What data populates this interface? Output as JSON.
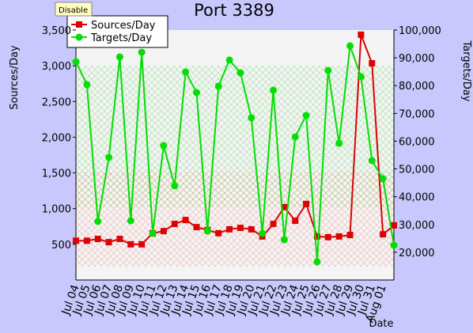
{
  "chart_data": {
    "type": "line",
    "title": "Port 3389",
    "tooltip": "Disable",
    "x_label": "Date",
    "y_label": "Sources/Day",
    "y2_label": "Targets/Day",
    "categories": [
      "Jul 04",
      "Jul 05",
      "Jul 06",
      "Jul 07",
      "Jul 08",
      "Jul 09",
      "Jul 10",
      "Jul 11",
      "Jul 12",
      "Jul 13",
      "Jul 14",
      "Jul 15",
      "Jul 16",
      "Jul 17",
      "Jul 18",
      "Jul 19",
      "Jul 20",
      "Jul 21",
      "Jul 22",
      "Jul 23",
      "Jul 24",
      "Jul 25",
      "Jul 26",
      "Jul 27",
      "Jul 28",
      "Jul 29",
      "Jul 30",
      "Jul 31",
      "Aug 01",
      null
    ],
    "series": [
      {
        "name": "Sources/Day",
        "color": "#dd0000",
        "marker": "square",
        "axis": "y",
        "values": [
          550,
          550,
          575,
          530,
          575,
          500,
          500,
          655,
          685,
          785,
          840,
          740,
          700,
          655,
          710,
          730,
          710,
          610,
          785,
          1020,
          830,
          1065,
          610,
          600,
          610,
          630,
          3435,
          3035,
          640,
          765
        ]
      },
      {
        "name": "Targets/Day",
        "color": "#00dd00",
        "marker": "circle",
        "axis": "y2",
        "values": [
          88600,
          80350,
          31100,
          54150,
          90300,
          31350,
          92000,
          26800,
          58400,
          43900,
          84900,
          77500,
          27650,
          79800,
          89200,
          84600,
          68400,
          26800,
          78350,
          24500,
          61550,
          69250,
          16550,
          85450,
          59250,
          94300,
          83200,
          53000,
          46450,
          22500
        ]
      }
    ],
    "ylim": [
      0,
      3500
    ],
    "yticks": [
      {
        "value": 500,
        "label": "500"
      },
      {
        "value": 1000,
        "label": "1,000"
      },
      {
        "value": 1500,
        "label": "1,500"
      },
      {
        "value": 2000,
        "label": "2,000"
      },
      {
        "value": 2500,
        "label": "2,500"
      },
      {
        "value": 3000,
        "label": "3,000"
      },
      {
        "value": 3500,
        "label": "3,500"
      }
    ],
    "y2lim": [
      10000,
      100000
    ],
    "y2ticks": [
      {
        "value": 20000,
        "label": "20,000"
      },
      {
        "value": 30000,
        "label": "30,000"
      },
      {
        "value": 40000,
        "label": "40,000"
      },
      {
        "value": 50000,
        "label": "50,000"
      },
      {
        "value": 60000,
        "label": "60,000"
      },
      {
        "value": 70000,
        "label": "70,000"
      },
      {
        "value": 80000,
        "label": "80,000"
      },
      {
        "value": 90000,
        "label": "90,000"
      },
      {
        "value": 100000,
        "label": "100,000"
      }
    ],
    "legend": "upper left"
  }
}
